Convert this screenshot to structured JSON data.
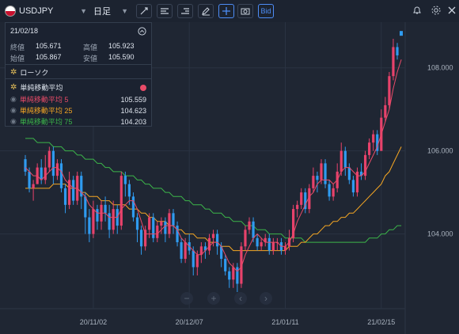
{
  "toolbar": {
    "symbol": "USDJPY",
    "timeframe": "日足",
    "bid_label": "Bid",
    "icons": [
      "trendline-icon",
      "horizontal-lines-icon",
      "drawing-list-icon",
      "pen-icon",
      "crosshair-icon",
      "camera-icon"
    ]
  },
  "info_panel": {
    "date": "21/02/18",
    "close_label": "終値",
    "close_value": "105.671",
    "high_label": "高値",
    "high_value": "105.923",
    "open_label": "始値",
    "open_value": "105.867",
    "low_label": "安値",
    "low_value": "105.590",
    "candle_label": "ローソク",
    "ma_title": "単純移動平均",
    "ma_items": [
      {
        "label": "単純移動平均 5",
        "value": "105.559",
        "color": "#e84b68"
      },
      {
        "label": "単純移動平均 25",
        "value": "104.623",
        "color": "#f5a623"
      },
      {
        "label": "単純移動平均 75",
        "value": "104.203",
        "color": "#3cb54a"
      }
    ]
  },
  "chart_data": {
    "type": "line",
    "ylim": [
      102.2,
      109.1
    ],
    "y_ticks": [
      "108.000",
      "106.000",
      "104.000"
    ],
    "x_tick_labels": [
      "20/11/02",
      "20/12/07",
      "21/01/11",
      "21/02/15"
    ],
    "colors": {
      "up": "#e8426b",
      "down": "#2f9bf0",
      "ma5": "#e84b68",
      "ma25": "#f5a623",
      "ma75": "#3cb54a"
    },
    "candles": [
      [
        105.8,
        105.5,
        105.9,
        105.4
      ],
      [
        105.5,
        105.1,
        105.6,
        105.0
      ],
      [
        105.1,
        105.2,
        105.3,
        104.8
      ],
      [
        105.2,
        105.6,
        105.7,
        105.2
      ],
      [
        105.6,
        105.3,
        105.8,
        105.2
      ],
      [
        105.3,
        105.6,
        105.9,
        105.2
      ],
      [
        105.6,
        106.0,
        106.1,
        105.5
      ],
      [
        106.0,
        105.4,
        106.1,
        105.2
      ],
      [
        105.4,
        105.7,
        105.8,
        105.3
      ],
      [
        105.7,
        105.1,
        105.8,
        105.0
      ],
      [
        105.1,
        104.7,
        105.2,
        104.5
      ],
      [
        104.7,
        105.3,
        105.5,
        104.6
      ],
      [
        105.3,
        104.8,
        105.4,
        104.7
      ],
      [
        104.8,
        105.4,
        105.5,
        104.7
      ],
      [
        105.4,
        104.9,
        105.5,
        104.6
      ],
      [
        104.9,
        104.4,
        105.0,
        104.0
      ],
      [
        104.4,
        104.0,
        104.6,
        103.8
      ],
      [
        104.0,
        104.6,
        104.8,
        103.9
      ],
      [
        104.6,
        104.3,
        104.7,
        104.1
      ],
      [
        104.3,
        104.7,
        104.8,
        104.1
      ],
      [
        104.7,
        104.5,
        104.9,
        104.3
      ],
      [
        104.5,
        104.1,
        104.7,
        103.9
      ],
      [
        104.1,
        104.6,
        104.8,
        104.0
      ],
      [
        104.6,
        104.2,
        104.7,
        104.0
      ],
      [
        104.2,
        105.4,
        105.5,
        104.1
      ],
      [
        105.4,
        105.2,
        105.5,
        104.9
      ],
      [
        105.2,
        104.9,
        105.3,
        104.7
      ],
      [
        104.9,
        104.4,
        105.0,
        104.3
      ],
      [
        104.4,
        104.1,
        104.5,
        103.8
      ],
      [
        104.1,
        103.7,
        104.2,
        103.5
      ],
      [
        103.7,
        104.1,
        104.2,
        103.6
      ],
      [
        104.1,
        104.4,
        104.5,
        103.9
      ],
      [
        104.4,
        103.9,
        104.5,
        103.8
      ],
      [
        103.9,
        104.2,
        104.3,
        103.8
      ],
      [
        104.2,
        104.3,
        104.4,
        104.0
      ],
      [
        104.3,
        104.0,
        104.4,
        103.8
      ],
      [
        104.0,
        104.5,
        104.6,
        103.9
      ],
      [
        104.5,
        104.2,
        104.6,
        104.0
      ],
      [
        104.2,
        103.8,
        104.3,
        103.7
      ],
      [
        103.8,
        103.4,
        103.9,
        103.3
      ],
      [
        103.4,
        103.8,
        103.9,
        103.3
      ],
      [
        103.8,
        103.6,
        104.0,
        103.5
      ],
      [
        103.6,
        103.2,
        103.7,
        103.0
      ],
      [
        103.2,
        103.5,
        103.6,
        103.0
      ],
      [
        103.5,
        103.7,
        103.8,
        103.3
      ],
      [
        103.7,
        103.6,
        103.8,
        103.4
      ],
      [
        103.6,
        103.9,
        104.0,
        103.5
      ],
      [
        103.9,
        104.0,
        104.1,
        103.7
      ],
      [
        104.0,
        103.7,
        104.1,
        103.5
      ],
      [
        103.7,
        103.4,
        103.8,
        103.2
      ],
      [
        103.4,
        103.1,
        103.5,
        103.0
      ],
      [
        103.1,
        102.9,
        103.2,
        102.7
      ],
      [
        102.9,
        103.2,
        103.3,
        102.7
      ],
      [
        103.2,
        102.8,
        103.3,
        102.6
      ],
      [
        102.8,
        103.7,
        103.8,
        102.7
      ],
      [
        103.7,
        104.1,
        104.2,
        103.6
      ],
      [
        104.1,
        104.3,
        104.4,
        104.0
      ],
      [
        104.3,
        103.9,
        104.4,
        103.8
      ],
      [
        103.9,
        103.7,
        104.0,
        103.6
      ],
      [
        103.7,
        103.8,
        103.9,
        103.6
      ],
      [
        103.8,
        103.9,
        104.0,
        103.7
      ],
      [
        103.9,
        103.6,
        104.0,
        103.5
      ],
      [
        103.6,
        103.8,
        103.9,
        103.5
      ],
      [
        103.8,
        103.8,
        103.9,
        103.6
      ],
      [
        103.8,
        103.6,
        103.9,
        103.5
      ],
      [
        103.6,
        103.7,
        103.8,
        103.5
      ],
      [
        103.7,
        103.9,
        104.1,
        103.6
      ],
      [
        103.9,
        104.6,
        104.7,
        103.8
      ],
      [
        104.6,
        104.7,
        104.8,
        104.4
      ],
      [
        104.7,
        105.0,
        105.1,
        104.6
      ],
      [
        105.0,
        104.6,
        105.1,
        104.5
      ],
      [
        104.6,
        105.1,
        105.2,
        104.5
      ],
      [
        105.1,
        105.4,
        105.6,
        105.0
      ],
      [
        105.4,
        105.3,
        105.5,
        105.0
      ],
      [
        105.3,
        105.7,
        105.8,
        105.2
      ],
      [
        105.7,
        105.2,
        105.8,
        105.1
      ],
      [
        105.2,
        104.9,
        105.3,
        104.8
      ],
      [
        104.9,
        105.1,
        105.2,
        104.8
      ],
      [
        105.1,
        105.5,
        105.7,
        105.0
      ],
      [
        105.5,
        106.0,
        106.2,
        105.4
      ],
      [
        106.0,
        105.6,
        106.1,
        105.4
      ],
      [
        105.6,
        105.3,
        105.7,
        105.2
      ],
      [
        105.3,
        105.0,
        105.4,
        104.9
      ],
      [
        105.0,
        105.5,
        105.6,
        104.9
      ],
      [
        105.5,
        105.4,
        105.7,
        105.3
      ],
      [
        105.4,
        105.9,
        106.0,
        105.3
      ],
      [
        105.9,
        106.2,
        106.3,
        105.8
      ],
      [
        106.2,
        106.4,
        106.5,
        106.0
      ],
      [
        106.4,
        106.0,
        106.5,
        105.9
      ],
      [
        106.0,
        106.8,
        107.0,
        106.0
      ],
      [
        106.8,
        107.1,
        107.3,
        106.7
      ],
      [
        107.1,
        107.8,
        107.9,
        107.0
      ],
      [
        107.8,
        108.5,
        108.7,
        107.7
      ],
      [
        108.5,
        108.3,
        108.6,
        108.2
      ]
    ],
    "ma5": [
      105.6,
      105.5,
      105.4,
      105.4,
      105.3,
      105.4,
      105.5,
      105.6,
      105.6,
      105.5,
      105.3,
      105.2,
      105.1,
      105.1,
      105.0,
      104.9,
      104.7,
      104.6,
      104.5,
      104.5,
      104.5,
      104.4,
      104.4,
      104.4,
      104.6,
      104.7,
      104.8,
      104.8,
      104.6,
      104.3,
      104.0,
      104.0,
      104.0,
      104.0,
      104.1,
      104.2,
      104.2,
      104.2,
      104.1,
      103.9,
      103.8,
      103.7,
      103.6,
      103.5,
      103.5,
      103.6,
      103.7,
      103.8,
      103.8,
      103.7,
      103.5,
      103.3,
      103.2,
      103.1,
      103.2,
      103.5,
      103.7,
      103.9,
      104.0,
      103.9,
      103.8,
      103.8,
      103.8,
      103.8,
      103.7,
      103.7,
      103.8,
      104.0,
      104.3,
      104.5,
      104.7,
      104.9,
      105.0,
      105.2,
      105.3,
      105.3,
      105.3,
      105.2,
      105.3,
      105.5,
      105.6,
      105.6,
      105.5,
      105.4,
      105.4,
      105.5,
      105.7,
      105.9,
      106.1,
      106.4,
      106.7,
      107.0,
      107.5,
      107.9,
      108.2
    ],
    "ma25": [
      105.1,
      105.1,
      105.1,
      105.1,
      105.1,
      105.1,
      105.1,
      105.2,
      105.2,
      105.2,
      105.2,
      105.1,
      105.1,
      105.1,
      105.0,
      105.0,
      104.9,
      104.9,
      104.9,
      104.8,
      104.8,
      104.8,
      104.7,
      104.7,
      104.7,
      104.7,
      104.6,
      104.6,
      104.6,
      104.5,
      104.5,
      104.4,
      104.4,
      104.3,
      104.3,
      104.3,
      104.2,
      104.2,
      104.1,
      104.1,
      104.0,
      104.0,
      104.0,
      103.9,
      103.9,
      103.9,
      103.8,
      103.8,
      103.8,
      103.7,
      103.7,
      103.7,
      103.6,
      103.6,
      103.6,
      103.6,
      103.6,
      103.6,
      103.6,
      103.6,
      103.6,
      103.6,
      103.6,
      103.6,
      103.6,
      103.6,
      103.7,
      103.7,
      103.7,
      103.8,
      103.8,
      103.9,
      104.0,
      104.0,
      104.1,
      104.2,
      104.2,
      104.3,
      104.3,
      104.4,
      104.4,
      104.5,
      104.5,
      104.6,
      104.7,
      104.8,
      104.9,
      105.0,
      105.1,
      105.2,
      105.4,
      105.5,
      105.7,
      105.9,
      106.1
    ],
    "ma75": [
      106.3,
      106.3,
      106.3,
      106.2,
      106.2,
      106.2,
      106.2,
      106.1,
      106.1,
      106.1,
      106.0,
      106.0,
      106.0,
      105.9,
      105.9,
      105.8,
      105.8,
      105.8,
      105.7,
      105.7,
      105.6,
      105.6,
      105.5,
      105.5,
      105.5,
      105.4,
      105.4,
      105.4,
      105.3,
      105.3,
      105.2,
      105.2,
      105.1,
      105.1,
      105.1,
      105.0,
      105.0,
      104.9,
      104.9,
      104.9,
      104.8,
      104.8,
      104.7,
      104.7,
      104.7,
      104.6,
      104.6,
      104.5,
      104.5,
      104.5,
      104.4,
      104.4,
      104.3,
      104.3,
      104.3,
      104.2,
      104.2,
      104.2,
      104.1,
      104.1,
      104.1,
      104.0,
      104.0,
      104.0,
      104.0,
      103.9,
      103.9,
      103.9,
      103.9,
      103.9,
      103.8,
      103.8,
      103.8,
      103.8,
      103.8,
      103.8,
      103.8,
      103.8,
      103.8,
      103.8,
      103.8,
      103.8,
      103.8,
      103.8,
      103.8,
      103.8,
      103.9,
      103.9,
      103.9,
      104.0,
      104.0,
      104.1,
      104.1,
      104.2,
      104.2
    ],
    "last_price": 108.83
  }
}
